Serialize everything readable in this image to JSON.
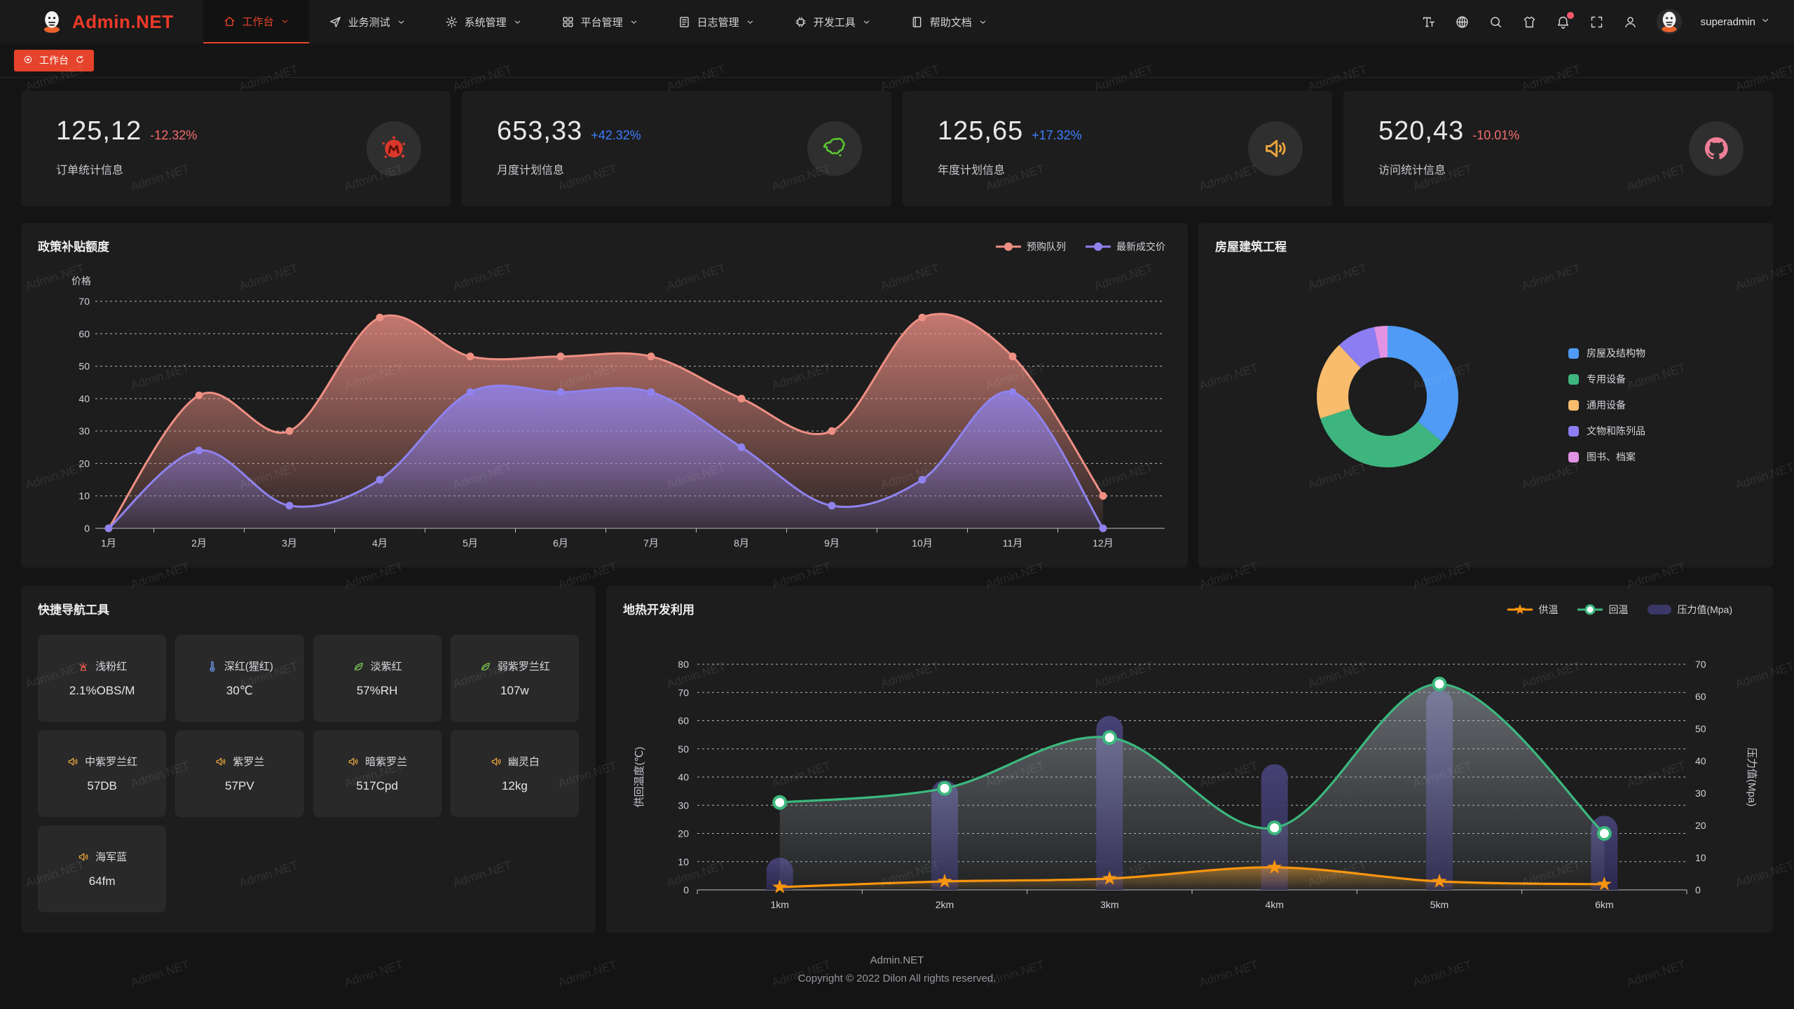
{
  "watermark": {
    "text": "Admin.NET"
  },
  "header": {
    "logo": "Admin.NET",
    "nav": [
      {
        "label": "工作台",
        "icon": "home-icon",
        "active": true
      },
      {
        "label": "业务测试",
        "icon": "send-icon",
        "active": false
      },
      {
        "label": "系统管理",
        "icon": "gear-icon",
        "active": false
      },
      {
        "label": "平台管理",
        "icon": "grid-icon",
        "active": false
      },
      {
        "label": "日志管理",
        "icon": "doc-icon",
        "active": false
      },
      {
        "label": "开发工具",
        "icon": "chip-icon",
        "active": false
      },
      {
        "label": "帮助文档",
        "icon": "book-icon",
        "active": false
      }
    ],
    "right_icons": [
      "font-size-icon",
      "language-icon",
      "search-icon",
      "theme-icon",
      "bell-icon",
      "fullscreen-icon",
      "user-icon"
    ],
    "user": "superadmin"
  },
  "tagsbar": {
    "active_tag": "工作台"
  },
  "stats": [
    {
      "value": "125,12",
      "delta": "-12.32%",
      "trend": "down",
      "label": "订单统计信息",
      "icon": "meetup-icon",
      "icon_color": "#d9382a"
    },
    {
      "value": "653,33",
      "delta": "+42.32%",
      "trend": "up",
      "label": "月度计划信息",
      "icon": "china-map-icon",
      "icon_color": "#5bc531"
    },
    {
      "value": "125,65",
      "delta": "+17.32%",
      "trend": "up",
      "label": "年度计划信息",
      "icon": "speaker-icon",
      "icon_color": "#e6a23c"
    },
    {
      "value": "520,43",
      "delta": "-10.01%",
      "trend": "down",
      "label": "访问统计信息",
      "icon": "octocat-icon",
      "icon_color": "#ee7f96"
    }
  ],
  "chart_data": [
    {
      "type": "area",
      "title": "政策补贴额度",
      "ylabel": "价格",
      "ylim": [
        0,
        70
      ],
      "grid": true,
      "smooth": true,
      "legend_position": "top-right",
      "categories": [
        "1月",
        "2月",
        "3月",
        "4月",
        "5月",
        "6月",
        "7月",
        "8月",
        "9月",
        "10月",
        "11月",
        "12月"
      ],
      "series": [
        {
          "name": "预购队列",
          "color": "#ee8f84",
          "values": [
            0,
            41,
            30,
            65,
            53,
            53,
            53,
            40,
            30,
            65,
            53,
            10
          ]
        },
        {
          "name": "最新成交价",
          "color": "#8f82ee",
          "values": [
            0,
            24,
            7,
            15,
            42,
            42,
            42,
            25,
            7,
            15,
            42,
            0
          ]
        }
      ]
    },
    {
      "type": "pie",
      "title": "房屋建筑工程",
      "donut": true,
      "legend_position": "right",
      "slices": [
        {
          "label": "房屋及结构物",
          "value": 36,
          "color": "#4f9bf5"
        },
        {
          "label": "专用设备",
          "value": 34,
          "color": "#3eb57f"
        },
        {
          "label": "通用设备",
          "value": 18,
          "color": "#f8bc6c"
        },
        {
          "label": "文物和陈列品",
          "value": 9,
          "color": "#8d7df2"
        },
        {
          "label": "图书、档案",
          "value": 3,
          "color": "#e393e4"
        }
      ]
    },
    {
      "type": "line+bar",
      "title": "地热开发利用",
      "categories": [
        "1km",
        "2km",
        "3km",
        "4km",
        "5km",
        "6km"
      ],
      "ylabel_left": "供回温度(℃)",
      "ylabel_right": "压力值(Mpa)",
      "ylim_left": [
        0,
        80
      ],
      "ylim_right": [
        0,
        70
      ],
      "series": [
        {
          "name": "供温",
          "type": "line",
          "axis": "left",
          "marker": "star",
          "color": "#f9950f",
          "values": [
            1,
            3,
            4,
            8,
            3,
            2
          ]
        },
        {
          "name": "回温",
          "type": "line",
          "axis": "left",
          "marker": "circle",
          "color": "#3cb87e",
          "values": [
            31,
            36,
            54,
            22,
            73,
            20
          ]
        },
        {
          "name": "压力值(Mpa)",
          "type": "bar",
          "axis": "right",
          "color": "#3b3766",
          "values": [
            10,
            34,
            54,
            39,
            62,
            23
          ]
        }
      ]
    }
  ],
  "quicknav": {
    "title": "快捷导航工具",
    "items": [
      {
        "name": "浅粉红",
        "value": "2.1%OBS/M",
        "icon": "alarm-icon",
        "color": "#e25649"
      },
      {
        "name": "深红(猩红)",
        "value": "30℃",
        "icon": "thermometer-icon",
        "color": "#6f9ff8"
      },
      {
        "name": "淡紫红",
        "value": "57%RH",
        "icon": "leaf-icon",
        "color": "#7ac756"
      },
      {
        "name": "弱紫罗兰红",
        "value": "107w",
        "icon": "leaf-icon",
        "color": "#7ac756"
      },
      {
        "name": "中紫罗兰红",
        "value": "57DB",
        "icon": "speaker-icon",
        "color": "#e6a23c"
      },
      {
        "name": "紫罗兰",
        "value": "57PV",
        "icon": "speaker-icon",
        "color": "#e6a23c"
      },
      {
        "name": "暗紫罗兰",
        "value": "517Cpd",
        "icon": "speaker-icon",
        "color": "#e6a23c"
      },
      {
        "name": "幽灵白",
        "value": "12kg",
        "icon": "speaker-icon",
        "color": "#e6a23c"
      },
      {
        "name": "海军蓝",
        "value": "64fm",
        "icon": "speaker-icon",
        "color": "#e6a23c"
      }
    ]
  },
  "footer": {
    "line1": "Admin.NET",
    "line2": "Copyright © 2022 Dilon All rights reserved."
  }
}
